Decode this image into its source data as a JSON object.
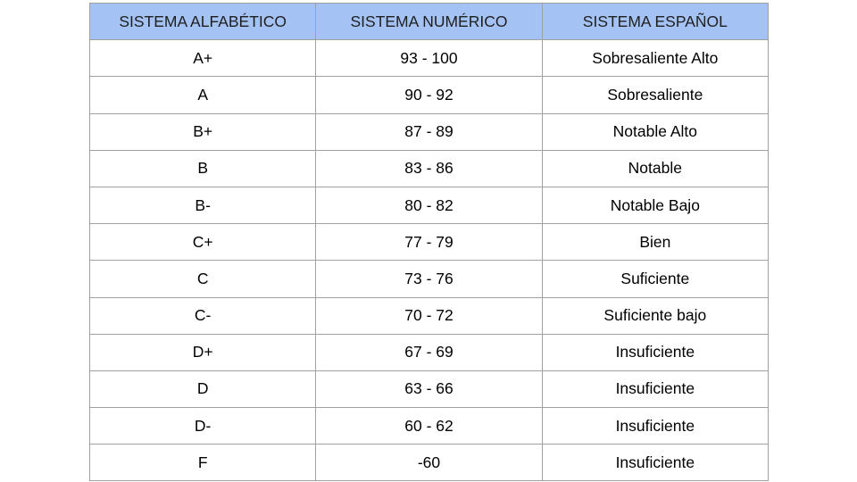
{
  "header": [
    "SISTEMA ALFABÉTICO",
    "SISTEMA NUMÉRICO",
    "SISTEMA ESPAÑOL"
  ],
  "header_color": "#a4c2f4",
  "rows": [
    [
      "A+",
      "93 - 100",
      "Sobresaliente Alto"
    ],
    [
      "A",
      "90 - 92",
      "Sobresaliente"
    ],
    [
      "B+",
      "87 - 89",
      "Notable Alto"
    ],
    [
      "B",
      "83 - 86",
      "Notable"
    ],
    [
      "B-",
      "80 - 82",
      "Notable Bajo"
    ],
    [
      "C+",
      "77 - 79",
      "Bien"
    ],
    [
      "C",
      "73 - 76",
      "Suficiente"
    ],
    [
      "C-",
      "70 - 72",
      "Suficiente bajo"
    ],
    [
      "D+",
      "67 - 69",
      "Insuficiente"
    ],
    [
      "D",
      "63 - 66",
      "Insuficiente"
    ],
    [
      "D-",
      "60 - 62",
      "Insuficiente"
    ],
    [
      "F",
      "-60",
      "Insuficiente"
    ]
  ]
}
